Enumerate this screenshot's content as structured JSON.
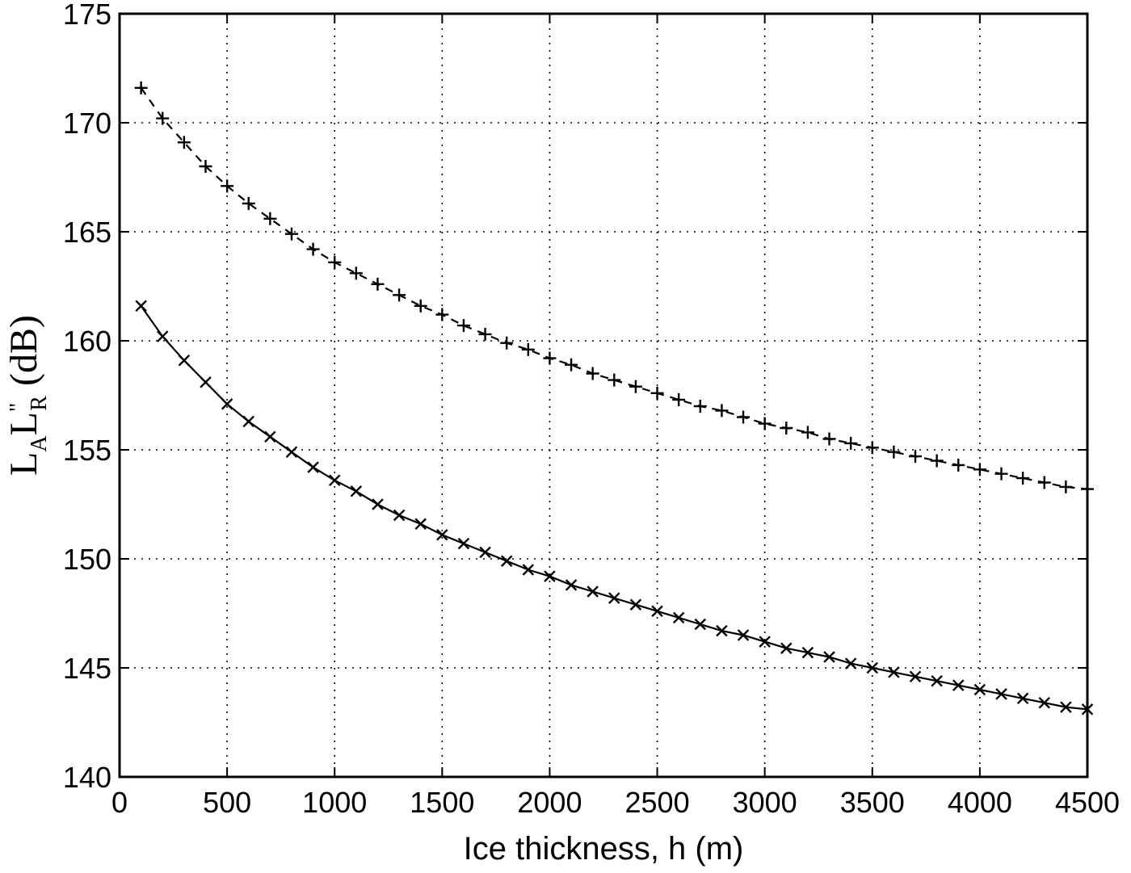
{
  "chart_data": {
    "type": "line",
    "xlabel": "Ice thickness, h (m)",
    "ylabel": {
      "symbol1": "L",
      "sub1": "A",
      "symbol2": "L",
      "sup2": "\"",
      "sub2": "R",
      "unit": " (dB)"
    },
    "xlim": [
      0,
      4500
    ],
    "ylim": [
      140,
      175
    ],
    "xticks": [
      0,
      500,
      1000,
      1500,
      2000,
      2500,
      3000,
      3500,
      4000,
      4500
    ],
    "yticks": [
      140,
      145,
      150,
      155,
      160,
      165,
      170,
      175
    ],
    "grid": true,
    "series": [
      {
        "line_style": "dashed",
        "marker": "plus",
        "x": [
          100,
          200,
          300,
          400,
          500,
          600,
          700,
          800,
          900,
          1000,
          1100,
          1200,
          1300,
          1400,
          1500,
          1600,
          1700,
          1800,
          1900,
          2000,
          2100,
          2200,
          2300,
          2400,
          2500,
          2600,
          2700,
          2800,
          2900,
          3000,
          3100,
          3200,
          3300,
          3400,
          3500,
          3600,
          3700,
          3800,
          3900,
          4000,
          4100,
          4200,
          4300,
          4400,
          4500
        ],
        "y": [
          171.6,
          170.2,
          169.1,
          168.0,
          167.1,
          166.3,
          165.6,
          164.9,
          164.2,
          163.6,
          163.1,
          162.6,
          162.1,
          161.6,
          161.2,
          160.7,
          160.3,
          159.9,
          159.6,
          159.2,
          158.9,
          158.5,
          158.2,
          157.9,
          157.6,
          157.3,
          157.0,
          156.8,
          156.5,
          156.2,
          156.0,
          155.8,
          155.5,
          155.3,
          155.1,
          154.9,
          154.7,
          154.5,
          154.3,
          154.1,
          153.9,
          153.7,
          153.5,
          153.3,
          153.2
        ]
      },
      {
        "line_style": "solid",
        "marker": "x",
        "x": [
          100,
          200,
          300,
          400,
          500,
          600,
          700,
          800,
          900,
          1000,
          1100,
          1200,
          1300,
          1400,
          1500,
          1600,
          1700,
          1800,
          1900,
          2000,
          2100,
          2200,
          2300,
          2400,
          2500,
          2600,
          2700,
          2800,
          2900,
          3000,
          3100,
          3200,
          3300,
          3400,
          3500,
          3600,
          3700,
          3800,
          3900,
          4000,
          4100,
          4200,
          4300,
          4400,
          4500
        ],
        "y": [
          161.6,
          160.2,
          159.1,
          158.1,
          157.1,
          156.3,
          155.6,
          154.9,
          154.2,
          153.6,
          153.1,
          152.5,
          152.0,
          151.6,
          151.1,
          150.7,
          150.3,
          149.9,
          149.5,
          149.2,
          148.8,
          148.5,
          148.2,
          147.9,
          147.6,
          147.3,
          147.0,
          146.7,
          146.5,
          146.2,
          145.9,
          145.7,
          145.5,
          145.2,
          145.0,
          144.8,
          144.6,
          144.4,
          144.2,
          144.0,
          143.8,
          143.6,
          143.4,
          143.2,
          143.1
        ]
      }
    ]
  }
}
